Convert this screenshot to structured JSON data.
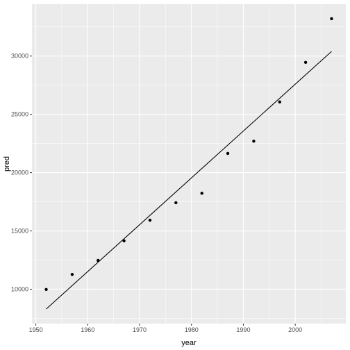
{
  "chart_data": {
    "type": "scatter",
    "title": "",
    "xlabel": "year",
    "ylabel": "pred",
    "xlim": [
      1949.25,
      2009.75
    ],
    "ylim": [
      7050,
      34450
    ],
    "x_ticks": [
      1950,
      1960,
      1970,
      1980,
      1990,
      2000
    ],
    "x_tick_labels": [
      "1950",
      "1960",
      "1970",
      "1980",
      "1990",
      "2000"
    ],
    "y_ticks": [
      10000,
      15000,
      20000,
      25000,
      30000
    ],
    "y_tick_labels": [
      "10000",
      "15000",
      "20000",
      "25000",
      "30000"
    ],
    "grid": true,
    "colors": {
      "panel": "#ebebeb",
      "grid": "#ffffff",
      "points": "#000000",
      "line": "#000000"
    },
    "points": {
      "x": [
        1952,
        1957,
        1962,
        1967,
        1972,
        1977,
        1982,
        1987,
        1992,
        1997,
        2002,
        2007
      ],
      "y": [
        9980,
        11270,
        12470,
        14150,
        15920,
        17420,
        18230,
        21650,
        22700,
        26060,
        29460,
        33200
      ]
    },
    "fit_line": {
      "x": [
        1952,
        2007
      ],
      "y": [
        8300,
        30400
      ]
    }
  }
}
